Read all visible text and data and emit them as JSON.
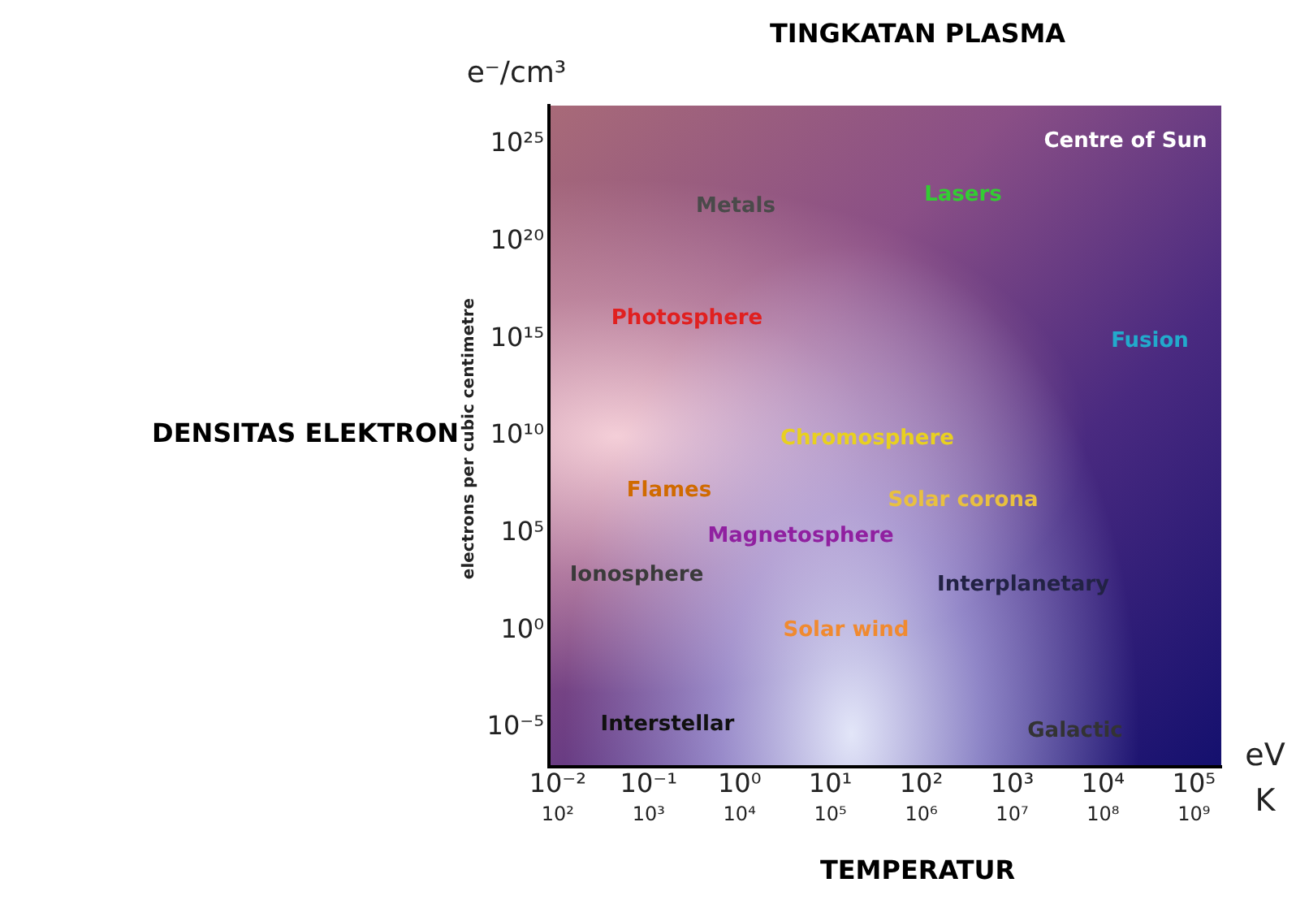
{
  "chart_data": {
    "type": "scatter",
    "title": "TINGKATAN PLASMA",
    "xlabel": "TEMPERATUR",
    "ylabel": "DENSITAS ELEKTRON",
    "log": "xy",
    "grid": false,
    "legend": false,
    "xlim": [
      0.008,
      200000
    ],
    "ylim": [
      1e-07,
      1e+27
    ],
    "xticks": [
      {
        "value": 0.01,
        "label": "10⁻²"
      },
      {
        "value": 0.1,
        "label": "10⁻¹"
      },
      {
        "value": 1,
        "label": "10⁰"
      },
      {
        "value": 10,
        "label": "10¹"
      },
      {
        "value": 100,
        "label": "10²"
      },
      {
        "value": 1000,
        "label": "10³"
      },
      {
        "value": 10000,
        "label": "10⁴"
      },
      {
        "value": 100000,
        "label": "10⁵"
      }
    ],
    "yticks": [
      {
        "value": 1e-05,
        "label": "10⁻⁵"
      },
      {
        "value": 1,
        "label": "10⁰"
      },
      {
        "value": 100000,
        "label": "10⁵"
      },
      {
        "value": 10000000000.0,
        "label": "10¹⁰"
      },
      {
        "value": 1000000000000000.0,
        "label": "10¹⁵"
      },
      {
        "value": 1e+20,
        "label": "10²⁰"
      },
      {
        "value": 1e+25,
        "label": "10²⁵"
      }
    ],
    "annotations": [
      "e⁻/cm³",
      "electrons per cubic centimetre",
      "eV",
      "K",
      "Centre of Sun",
      "Metals",
      "Lasers",
      "Photosphere",
      "Fusion",
      "Chromosphere",
      "Flames",
      "Solar corona",
      "Magnetosphere",
      "Ionosphere",
      "Interplanetary",
      "Solar wind",
      "Interstellar",
      "Galactic",
      "10²",
      "10³",
      "10⁴",
      "10⁵",
      "10⁶",
      "10⁷",
      "10⁸",
      "10⁹"
    ]
  }
}
